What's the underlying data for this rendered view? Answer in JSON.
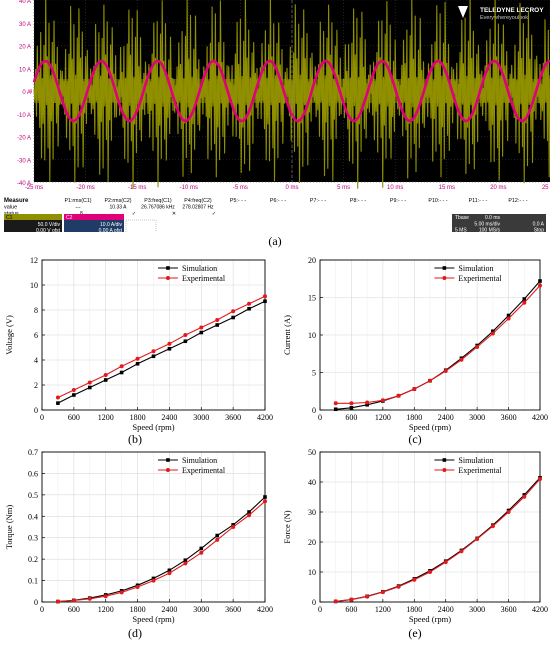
{
  "captions": {
    "a": "(a)",
    "b": "(b)",
    "c": "(c)",
    "d": "(d)",
    "e": "(e)"
  },
  "colors": {
    "simulation": "#000000",
    "experimental": "#e31a1c",
    "osc_bg": "#000000",
    "osc_grid": "#3a3a3a",
    "ch1": "#8f8f00",
    "ch2": "#e0007a"
  },
  "osc": {
    "brand": "TELEDYNE LECROY",
    "tagline": "Everywhereyoulook",
    "y_ticks": [
      "40 A",
      "30 A",
      "20 A",
      "10 A",
      "0 A",
      "-10 A",
      "-20 A",
      "-30 A",
      "-40 A"
    ],
    "x_ticks": [
      "-25 ms",
      "-20 ms",
      "-15 ms",
      "-10 ms",
      "-5 ms",
      "0 ms",
      "5 ms",
      "10 ms",
      "15 ms",
      "20 ms",
      "25 ms"
    ],
    "channel_marker": "4",
    "measure_labels": [
      "Measure",
      "value",
      "status"
    ],
    "measure_cols": [
      {
        "name": "P1:rms(C1)",
        "value": "---",
        "status": ""
      },
      {
        "name": "P2:rms(C2)",
        "value": "10.33 A",
        "status": "✓"
      },
      {
        "name": "P3:freq(C1)",
        "value": "26.767086 kHz",
        "status": "✕"
      },
      {
        "name": "P4:freq(C2)",
        "value": "278.02807 Hz",
        "status": "✓"
      },
      {
        "name": "P5:- - -",
        "value": "",
        "status": ""
      },
      {
        "name": "P6:- - -",
        "value": "",
        "status": ""
      },
      {
        "name": "P7:- - -",
        "value": "",
        "status": ""
      },
      {
        "name": "P8:- - -",
        "value": "",
        "status": ""
      },
      {
        "name": "P9:- - -",
        "value": "",
        "status": ""
      },
      {
        "name": "P10:- - -",
        "value": "",
        "status": ""
      },
      {
        "name": "P11:- - -",
        "value": "",
        "status": ""
      },
      {
        "name": "P12:- - -",
        "value": "",
        "status": ""
      }
    ],
    "status_flag": "8",
    "c1": {
      "label": "C1",
      "scale": "50.0 V/div",
      "offset": "0.00 V ofst"
    },
    "c2": {
      "label": "C2",
      "scale": "10.0 A/div",
      "offset": "0.00 A ofst"
    },
    "timebase": {
      "label": "Tbase",
      "t0": "0.0 ms",
      "div": "5.00 ms/div",
      "ms": "5 MS",
      "rate": "100 MS/s",
      "trig_level": "0.0 A",
      "trig_mode": "Stop"
    }
  },
  "chart_data": [
    {
      "id": "b",
      "type": "line",
      "xlabel": "Speed (rpm)",
      "ylabel": "Voltage (V)",
      "xlim": [
        0,
        4200
      ],
      "ylim": [
        0,
        12
      ],
      "xticks": [
        0,
        600,
        1200,
        1800,
        2400,
        3000,
        3600,
        4200
      ],
      "yticks": [
        0,
        2,
        4,
        6,
        8,
        10,
        12
      ],
      "legend": "top-left",
      "grid": true,
      "x": [
        300,
        600,
        900,
        1200,
        1500,
        1800,
        2100,
        2400,
        2700,
        3000,
        3300,
        3600,
        3900,
        4200
      ],
      "series": [
        {
          "name": "Simulation",
          "values": [
            0.55,
            1.2,
            1.8,
            2.4,
            3.0,
            3.7,
            4.3,
            4.9,
            5.5,
            6.2,
            6.8,
            7.4,
            8.1,
            8.7
          ]
        },
        {
          "name": "Experimental",
          "values": [
            1.0,
            1.6,
            2.2,
            2.8,
            3.5,
            4.1,
            4.7,
            5.3,
            6.0,
            6.6,
            7.2,
            7.9,
            8.5,
            9.1
          ]
        }
      ]
    },
    {
      "id": "c",
      "type": "line",
      "xlabel": "Speed (rpm)",
      "ylabel": "Current (A)",
      "xlim": [
        0,
        4200
      ],
      "ylim": [
        0,
        20
      ],
      "xticks": [
        0,
        600,
        1200,
        1800,
        2400,
        3000,
        3600,
        4200
      ],
      "yticks": [
        0,
        5,
        10,
        15,
        20
      ],
      "legend": "top-left",
      "grid": true,
      "x": [
        300,
        600,
        900,
        1200,
        1500,
        1800,
        2100,
        2400,
        2700,
        3000,
        3300,
        3600,
        3900,
        4200
      ],
      "series": [
        {
          "name": "Simulation",
          "values": [
            0.1,
            0.3,
            0.7,
            1.2,
            1.9,
            2.8,
            3.9,
            5.3,
            6.9,
            8.6,
            10.5,
            12.6,
            14.8,
            17.2
          ]
        },
        {
          "name": "Experimental",
          "values": [
            0.9,
            0.9,
            1.0,
            1.3,
            1.9,
            2.8,
            3.9,
            5.2,
            6.7,
            8.4,
            10.2,
            12.2,
            14.3,
            16.6
          ]
        }
      ]
    },
    {
      "id": "d",
      "type": "line",
      "xlabel": "Speed (rpm)",
      "ylabel": "Torque (Nm)",
      "xlim": [
        0,
        4200
      ],
      "ylim": [
        0,
        0.7
      ],
      "xticks": [
        0,
        600,
        1200,
        1800,
        2400,
        3000,
        3600,
        4200
      ],
      "yticks": [
        0,
        0.1,
        0.2,
        0.3,
        0.4,
        0.5,
        0.6,
        0.7
      ],
      "legend": "top-left",
      "grid": true,
      "x": [
        300,
        600,
        900,
        1200,
        1500,
        1800,
        2100,
        2400,
        2700,
        3000,
        3300,
        3600,
        3900,
        4200
      ],
      "series": [
        {
          "name": "Simulation",
          "values": [
            0.002,
            0.008,
            0.018,
            0.033,
            0.052,
            0.078,
            0.11,
            0.148,
            0.195,
            0.25,
            0.31,
            0.36,
            0.42,
            0.49
          ]
        },
        {
          "name": "Experimental",
          "values": [
            0.002,
            0.007,
            0.015,
            0.027,
            0.045,
            0.07,
            0.1,
            0.135,
            0.18,
            0.23,
            0.29,
            0.35,
            0.405,
            0.47
          ]
        }
      ]
    },
    {
      "id": "e",
      "type": "line",
      "xlabel": "Speed (rpm)",
      "ylabel": "Force (N)",
      "xlim": [
        0,
        4200
      ],
      "ylim": [
        0,
        50
      ],
      "xticks": [
        0,
        600,
        1200,
        1800,
        2400,
        3000,
        3600,
        4200
      ],
      "yticks": [
        0,
        10,
        20,
        30,
        40,
        50
      ],
      "legend": "top-left",
      "grid": true,
      "x": [
        300,
        600,
        900,
        1200,
        1500,
        1800,
        2100,
        2400,
        2700,
        3000,
        3300,
        3600,
        3900,
        4200
      ],
      "series": [
        {
          "name": "Simulation",
          "values": [
            0.2,
            0.8,
            1.9,
            3.4,
            5.3,
            7.7,
            10.4,
            13.6,
            17.2,
            21.2,
            25.6,
            30.5,
            35.7,
            41.4
          ]
        },
        {
          "name": "Experimental",
          "values": [
            0.2,
            0.8,
            1.8,
            3.3,
            5.1,
            7.4,
            10.0,
            13.3,
            16.9,
            21.0,
            25.3,
            30.0,
            35.1,
            41.0
          ]
        }
      ]
    }
  ]
}
